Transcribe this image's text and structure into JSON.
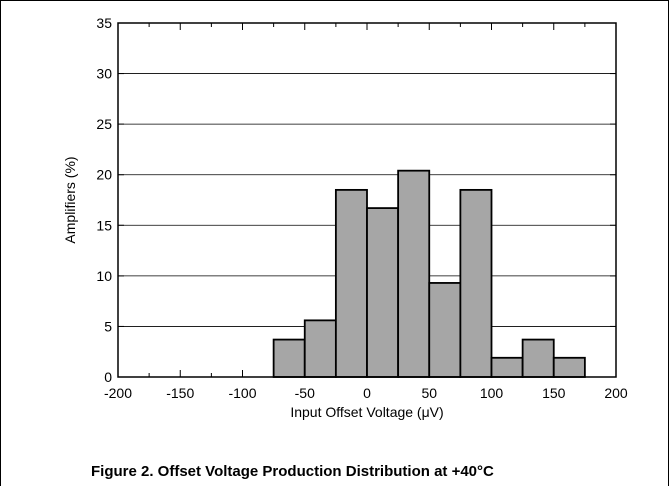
{
  "figure": {
    "caption": "Figure 2. Offset Voltage Production Distribution at +40°C"
  },
  "chart_data": {
    "type": "bar",
    "xlabel": "Input Offset Voltage (μV)",
    "ylabel": "Amplifiers (%)",
    "xlim": [
      -200,
      200
    ],
    "ylim": [
      0,
      35
    ],
    "x_ticks": [
      "-200",
      "-150",
      "-100",
      "-50",
      "0",
      "50",
      "100",
      "150",
      "200"
    ],
    "y_ticks": [
      "0",
      "5",
      "10",
      "15",
      "20",
      "25",
      "30",
      "35"
    ],
    "grid": "horizontal",
    "bin_width": 25,
    "bins": [
      {
        "x0": -75,
        "x1": -50,
        "value": 3.7
      },
      {
        "x0": -50,
        "x1": -25,
        "value": 5.6
      },
      {
        "x0": -25,
        "x1": 0,
        "value": 18.5
      },
      {
        "x0": 0,
        "x1": 25,
        "value": 16.7
      },
      {
        "x0": 25,
        "x1": 50,
        "value": 20.4
      },
      {
        "x0": 50,
        "x1": 75,
        "value": 9.3
      },
      {
        "x0": 75,
        "x1": 100,
        "value": 18.5
      },
      {
        "x0": 100,
        "x1": 125,
        "value": 1.9
      },
      {
        "x0": 125,
        "x1": 150,
        "value": 3.7
      },
      {
        "x0": 150,
        "x1": 175,
        "value": 1.9
      }
    ],
    "colors": {
      "bar_fill": "#a6a6a6",
      "bar_stroke": "#000000",
      "grid": "#000000"
    }
  }
}
